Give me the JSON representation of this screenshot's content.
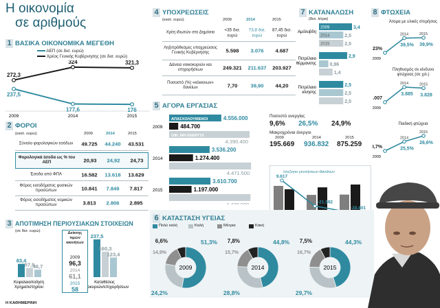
{
  "header": {
    "title_line1": "Η οικονομία",
    "title_line2": "σε αριθμούς",
    "source": "Η ΚΑΘΗΜΕΡΙΝΗ"
  },
  "colors": {
    "teal": "#2f8aa0",
    "dark": "#1a1a1a",
    "mid_gray": "#8f8f8f",
    "light_gray": "#c7d0d4",
    "pale_teal": "#a9c7d1"
  },
  "s1": {
    "num": "1",
    "title": "ΒΑΣΙΚΑ ΟΙΚΟΝΟΜΙΚΑ ΜΕΓΕΘΗ",
    "legend": [
      "ΑΕΠ (σε δισ. ευρώ)",
      "Χρέος Γενικής Κυβέρνησης (σε δισ. ευρώ)"
    ],
    "chart_data": {
      "type": "line",
      "x": [
        "2009",
        "2014",
        "2015"
      ],
      "series": [
        {
          "name": "ΑΕΠ (σε δισ. ευρώ)",
          "values": [
            237.5,
            177.6,
            176
          ],
          "labels": [
            "237,5",
            "177,6",
            "176"
          ]
        },
        {
          "name": "Χρέος Γενικής Κυβέρνησης (σε δισ. ευρώ)",
          "values": [
            272.3,
            324,
            321.3
          ],
          "labels": [
            "272,3",
            "324",
            "321,3"
          ]
        }
      ]
    }
  },
  "s2": {
    "num": "2",
    "title": "ΦΟΡΟΙ",
    "unit": "(εκατ. ευρώ)",
    "years": [
      "2009",
      "2014",
      "2015"
    ],
    "rows": [
      {
        "label": "Σύνολο φορολογικών εσόδων",
        "values": [
          "49.725",
          "44.240",
          "43.531"
        ]
      },
      {
        "label": "Φορολογικά έσοδα ως % του ΑΕΠ",
        "values": [
          "20,93",
          "24,92",
          "24,73"
        ]
      },
      {
        "label": "Έσοδα από ΦΠΑ",
        "values": [
          "16.582",
          "13.618",
          "13.629"
        ]
      },
      {
        "label": "Φόρος εισοδήματος φυσικών προσώπων",
        "values": [
          "10.841",
          "7.849",
          "7.817"
        ]
      },
      {
        "label": "Φόρος εισοδήματος νομικών προσώπων",
        "values": [
          "3.813",
          "2.806",
          "2.895"
        ]
      }
    ]
  },
  "s3": {
    "num": "3",
    "title": "ΑΠΟΤΙΜΗΣΗ ΠΕΡΙΟΥΣΙΑΚΩΝ ΣΤΟΙΧΕΙΩΝ",
    "unit": "(σε δισ. ευρώ)",
    "chart_data": {
      "type": "bar",
      "groups": [
        {
          "name": "Κεφαλαιοποίηση Χρηματιστηρίου",
          "values": [
            83.4,
            57.9,
            46.7
          ],
          "labels": [
            "83,4",
            "57,9",
            "46,7"
          ]
        },
        {
          "name": "Καταθέσεις νοικοκυριών/επιχειρήσεων",
          "values": [
            237.5,
            160.3,
            123.4
          ],
          "labels": [
            "237,5",
            "160,3",
            "123,4"
          ]
        }
      ]
    },
    "index_box": {
      "title": "Δείκτης τιμών ακινήτων",
      "rows": [
        {
          "year": "2009",
          "value": "96,3"
        },
        {
          "year": "2014",
          "value": "61,1"
        },
        {
          "year": "2015",
          "value": "58"
        }
      ]
    }
  },
  "s4": {
    "num": "4",
    "title": "ΥΠΟΧΡΕΩΣΕΙΣ",
    "unit": "(εκατ. ευρώ)",
    "years": [
      "2009",
      "2014",
      "2015"
    ],
    "rows": [
      {
        "label": "Χρέη ιδιωτών στο Δημόσιο",
        "values": [
          "<35 δισ. ευρώ",
          "73,8 δισ. ευρώ",
          "87,45 δισ. ευρώ"
        ]
      },
      {
        "label": "Ληξιπρόθεσμες υποχρεώσεις Γενικής Κυβέρνησης",
        "values": [
          "5.598",
          "3.076",
          "4.687"
        ]
      },
      {
        "label": "Δάνεια νοικοκυριών και επιχειρήσεων",
        "values": [
          "249.321",
          "211.637",
          "203.927"
        ]
      },
      {
        "label": "Ποσοστό (%) «κόκκινων» δανείων",
        "values": [
          "7,70",
          "39,90",
          "44,20"
        ]
      }
    ]
  },
  "s5": {
    "num": "5",
    "title": "ΑΓΟΡΑ ΕΡΓΑΣΙΑΣ",
    "chart_data": {
      "type": "bar",
      "years": [
        "2009",
        "2014",
        "2015"
      ],
      "series": [
        {
          "name": "ΑΠΑΣΧΟΛΟΥΜΕΝΟΙ",
          "values": [
            4556000,
            3536200,
            3610700
          ],
          "labels": [
            "4.556.000",
            "3.536.200",
            "3.610.700"
          ]
        },
        {
          "name": "ΑΝΕΡΓΟΙ",
          "values": [
            484700,
            1274400,
            1197000
          ],
          "labels": [
            "484.700",
            "1.274.400",
            "1.197.000"
          ]
        },
        {
          "name": "ΟΙΚ. ΜΗ ΕΝΕΡΓΟΙ",
          "values": [
            4390400,
            4471500,
            4438900
          ],
          "labels": [
            "4.390.400",
            "4.471.500",
            "4.438.900"
          ]
        }
      ]
    },
    "unemployment": {
      "title": "Ποσοστό ανεργίας",
      "values": [
        "9,6%",
        "26,5%",
        "24,9%"
      ]
    },
    "long_term": {
      "title": "Μακροχρόνια άνεργοι",
      "years": [
        "2009",
        "2014",
        "2015"
      ],
      "values": [
        "195.669",
        "936.832",
        "875.259"
      ]
    },
    "births": {
      "title": "Ισοζύγιο γεννήσεων-θανάτων",
      "legend": [
        "ΓΕΝΝΗΣΕΙΣ",
        "ΘΑΝΑΤΟΙ"
      ],
      "chart_data": {
        "type": "bar",
        "years": [
          "2009",
          "2014",
          "2015"
        ],
        "series": [
          {
            "name": "ΓΕΝΝΗΣΕΙΣ",
            "values": [
              117933,
              92148,
              92984
            ],
            "labels": [
              "117.933",
              "92.148",
              "92.984"
            ]
          },
          {
            "name": "ΘΑΝΑΤΟΙ",
            "values": [
              108316,
              113740,
              121785
            ],
            "labels": [
              "108.316",
              "113.740",
              "121.785"
            ]
          }
        ],
        "balance": {
          "values": [
            9617,
            -21592,
            -28801
          ],
          "labels": [
            "9.617",
            "-21.592",
            "-28.801"
          ]
        }
      }
    }
  },
  "s6": {
    "num": "6",
    "title": "ΚΑΤΑΣΤΑΣΗ ΥΓΕΙΑΣ",
    "legend": [
      "Πολύ καλή",
      "Καλή",
      "Μέτρια",
      "Κακή"
    ],
    "chart_data": {
      "type": "pie",
      "categories": [
        "Πολύ καλή",
        "Καλή",
        "Μέτρια",
        "Κακή"
      ],
      "charts": [
        {
          "year": "2009",
          "values": [
            51.3,
            24.2,
            14.9,
            6.6
          ],
          "labels": [
            "51,3%",
            "24,2%",
            "14,9%",
            "6,6%"
          ]
        },
        {
          "year": "2014",
          "values": [
            44.8,
            28.8,
            15.7,
            7.8
          ],
          "labels": [
            "44,8%",
            "28,8%",
            "15,7%",
            "7,8%"
          ]
        },
        {
          "year": "2015",
          "values": [
            44.3,
            29.7,
            16.7,
            7.5
          ],
          "labels": [
            "44,3%",
            "29,7%",
            "16,7%",
            "7,5%"
          ]
        }
      ]
    }
  },
  "s7": {
    "num": "7",
    "title": "ΚΑΤΑΝΑΛΩΣΗ",
    "unit": "(δισ. λίτρα)",
    "chart_data": {
      "type": "bar",
      "years": [
        "2009",
        "2014",
        "2015"
      ],
      "groups": [
        {
          "name": "Αμόλυβδη",
          "values": [
            3.4,
            2.5,
            2.5
          ],
          "labels": [
            "3,4",
            "2,5",
            "2,5"
          ]
        },
        {
          "name": "Πετρέλαιο θέρμανσης",
          "values": [
            2.9,
            0.96,
            1.4
          ],
          "labels": [
            "2,9",
            "0,96",
            "1,4"
          ]
        },
        {
          "name": "Πετρέλαιο κίνησης",
          "values": [
            2.5,
            2.5,
            2.5
          ],
          "labels": [
            "2,5",
            "2,5",
            "2,5"
          ]
        }
      ]
    }
  },
  "s8": {
    "num": "8",
    "title": "ΦΤΩΧΕΙΑ",
    "charts": [
      {
        "title": "Άτομα με υλικές στερήσεις",
        "values": [
          23,
          39.5,
          39.9
        ],
        "labels": [
          "23%",
          "39,5%",
          "39,9%"
        ],
        "years": [
          "2009",
          "2014",
          "2015"
        ]
      },
      {
        "title": "Πληθυσμός σε κίνδυνο φτώχειας (σε χιλ.)",
        "values": [
          3007,
          3885,
          3828
        ],
        "labels": [
          "3.007",
          "3.885",
          "3.828"
        ],
        "years": [
          "2009",
          "2014",
          "2015"
        ]
      },
      {
        "title": "Παιδική φτώχεια",
        "values": [
          23.7,
          25.5,
          26.6
        ],
        "labels": [
          "23,7%",
          "25,5%",
          "26,6%"
        ],
        "years": [
          "2009",
          "2014",
          "2015"
        ]
      }
    ]
  }
}
